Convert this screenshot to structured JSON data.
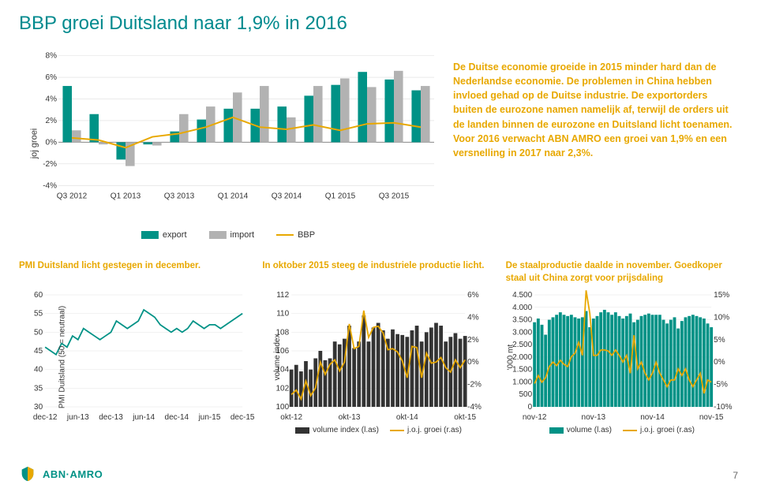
{
  "title": "BBP groei Duitsland naar 1,9% in 2016",
  "page_number": "7",
  "brand": "ABN·AMRO",
  "main_chart": {
    "ylabel": "joj groei",
    "ylim": [
      -4,
      8
    ],
    "ytick_step": 2,
    "ytick_labels": [
      "-4%",
      "-2%",
      "0%",
      "2%",
      "4%",
      "6%",
      "8%"
    ],
    "x_categories": [
      "Q3 2012",
      "",
      "Q1 2013",
      "",
      "Q3 2013",
      "",
      "Q1 2014",
      "",
      "Q3 2014",
      "",
      "Q1 2015",
      "",
      "Q3 2015",
      ""
    ],
    "x_label_indices": [
      0,
      2,
      4,
      6,
      8,
      10,
      12
    ],
    "series": {
      "export": {
        "label": "export",
        "color": "#009286",
        "values": [
          5.2,
          2.6,
          -1.6,
          -0.2,
          1.0,
          2.1,
          3.1,
          3.1,
          3.3,
          4.3,
          5.3,
          6.5,
          5.8,
          4.8
        ]
      },
      "import": {
        "label": "import",
        "color": "#b2b2b2",
        "values": [
          1.1,
          -0.2,
          -2.2,
          -0.3,
          2.6,
          3.3,
          4.6,
          5.2,
          2.3,
          5.2,
          5.9,
          5.1,
          6.6,
          5.2
        ]
      },
      "bbp": {
        "label": "BBP",
        "color": "#e8a800",
        "values": [
          0.4,
          0.2,
          -0.5,
          0.5,
          0.8,
          1.4,
          2.3,
          1.4,
          1.2,
          1.6,
          1.1,
          1.7,
          1.8,
          1.4
        ]
      }
    }
  },
  "side_text": "De Duitse economie groeide in 2015 minder hard dan de Nederlandse economie. De problemen in China hebben invloed gehad op de Duitse industrie. De exportorders buiten de eurozone namen namelijk af, terwijl de orders uit de landen binnen de eurozone en Duitsland licht toenamen. Voor 2016 verwacht ABN AMRO een groei van 1,9% en een versnelling in 2017 naar 2,3%.",
  "sub1": {
    "caption": "PMI Duitsland licht gestegen in december.",
    "ylabel": "PMI Duitsland (50 = neutraal)",
    "ylim": [
      30,
      60
    ],
    "yticks": [
      30,
      35,
      40,
      45,
      50,
      55,
      60
    ],
    "x_labels": [
      "dec-12",
      "jun-13",
      "dec-13",
      "jun-14",
      "dec-14",
      "jun-15",
      "dec-15"
    ],
    "line": {
      "color": "#009286",
      "values": [
        46,
        45,
        44,
        47,
        46,
        49,
        48,
        51,
        50,
        49,
        48,
        49,
        50,
        53,
        52,
        51,
        52,
        53,
        56,
        55,
        54,
        52,
        51,
        50,
        51,
        50,
        51,
        53,
        52,
        51,
        52,
        52,
        51,
        52,
        53,
        54,
        55
      ]
    }
  },
  "sub2": {
    "caption": "In oktober 2015 steeg de industriele productie licht.",
    "ylabel": "volume index",
    "ylim_left": [
      100,
      112
    ],
    "yticks_left": [
      100,
      102,
      104,
      106,
      108,
      110,
      112
    ],
    "ylim_right": [
      -4,
      6
    ],
    "yticks_right": [
      "-4%",
      "-2%",
      "0%",
      "2%",
      "4%",
      "6%"
    ],
    "x_labels": [
      "okt-12",
      "okt-13",
      "okt-14",
      "okt-15"
    ],
    "bar": {
      "label": "volume index (l.as)",
      "color": "#333333",
      "values": [
        104.0,
        104.5,
        103.8,
        104.9,
        104.0,
        105.2,
        106.0,
        105.0,
        105.2,
        107.0,
        106.7,
        107.3,
        108.7,
        106.3,
        107.0,
        109.8,
        107.0,
        108.5,
        109.0,
        108.2,
        107.3,
        108.3,
        107.8,
        107.7,
        107.5,
        108.2,
        108.7,
        107.0,
        108.0,
        108.5,
        109.0,
        108.7,
        107.0,
        107.5,
        107.9,
        107.3,
        107.6
      ]
    },
    "line": {
      "label": "j.o.j. groei (r.as)",
      "color": "#e8a800",
      "values": [
        -2.9,
        -2.5,
        -3.3,
        -1.7,
        -3.0,
        -2.3,
        0.0,
        -1.1,
        -0.2,
        0.2,
        -0.8,
        0.0,
        3.4,
        1.2,
        1.4,
        4.6,
        2.2,
        3.1,
        3.2,
        2.6,
        1.1,
        1.2,
        0.9,
        0.1,
        -1.4,
        1.4,
        1.3,
        -1.4,
        0.8,
        -0.1,
        0.0,
        0.4,
        -0.5,
        -0.9,
        0.2,
        -0.5,
        0.2
      ]
    }
  },
  "sub3": {
    "caption": "De staalproductie daalde in november. Goedkoper staal uit China zorgt voor prijsdaling",
    "ylabel": "'000 mt",
    "ylim_left": [
      0,
      4500
    ],
    "yticks_left": [
      "0",
      "500",
      "1.000",
      "1.500",
      "2.000",
      "2.500",
      "3.000",
      "3.500",
      "4.000",
      "4.500"
    ],
    "ylim_right": [
      -10,
      15
    ],
    "yticks_right": [
      "-10%",
      "-5%",
      "0%",
      "5%",
      "10%",
      "15%"
    ],
    "x_labels": [
      "nov-12",
      "nov-13",
      "nov-14",
      "nov-15"
    ],
    "bar": {
      "label": "volume (l.as)",
      "color": "#009286",
      "values": [
        3400,
        3550,
        3300,
        2900,
        3500,
        3600,
        3700,
        3800,
        3700,
        3650,
        3700,
        3600,
        3550,
        3600,
        3850,
        3200,
        3550,
        3650,
        3800,
        3900,
        3800,
        3700,
        3800,
        3650,
        3550,
        3650,
        3750,
        3400,
        3500,
        3650,
        3700,
        3750,
        3700,
        3700,
        3700,
        3500,
        3350,
        3500,
        3600,
        3150,
        3450,
        3600,
        3650,
        3700,
        3650,
        3600,
        3550,
        3350,
        3200
      ]
    },
    "line": {
      "label": "j.o.j. groei (r.as)",
      "color": "#e8a800",
      "values": [
        -4.8,
        -3.0,
        -4.5,
        -3.5,
        -1.0,
        0.0,
        -0.8,
        0.4,
        -0.5,
        -1.0,
        1.2,
        2.0,
        4.4,
        1.5,
        16.0,
        10.9,
        1.5,
        1.5,
        2.7,
        2.7,
        2.5,
        1.5,
        2.7,
        1.5,
        0.0,
        1.5,
        -2.5,
        6.0,
        -1.5,
        0.0,
        -2.5,
        -4.0,
        -2.5,
        0.0,
        -2.5,
        -4.0,
        -5.5,
        -4.0,
        -4.0,
        -1.5,
        -3.0,
        -1.5,
        -4.0,
        -5.5,
        -4.0,
        -2.5,
        -7.0,
        -4.0,
        -4.5
      ]
    }
  },
  "legend_labels": {
    "sub2_bar": "volume index (l.as)",
    "sub2_line": "j.o.j. groei (r.as)",
    "sub3_bar": "volume (l.as)",
    "sub3_line": "j.o.j. groei (r.as)"
  }
}
